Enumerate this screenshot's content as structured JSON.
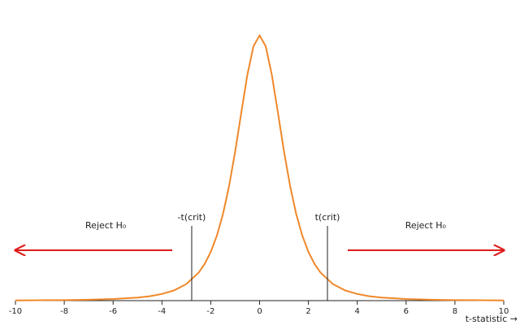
{
  "chart_data": {
    "type": "line",
    "x": [
      -10,
      -9,
      -8,
      -7,
      -6,
      -5,
      -4.5,
      -4,
      -3.5,
      -3,
      -2.5,
      -2.25,
      -2,
      -1.75,
      -1.5,
      -1.25,
      -1,
      -0.75,
      -0.5,
      -0.25,
      0,
      0.25,
      0.5,
      0.75,
      1,
      1.25,
      1.5,
      1.75,
      2,
      2.25,
      2.5,
      3,
      3.5,
      4,
      4.5,
      5,
      6,
      7,
      8,
      9,
      10
    ],
    "values": [
      0.0003,
      0.0005,
      0.0007,
      0.0012,
      0.0022,
      0.0042,
      0.0061,
      0.0092,
      0.0142,
      0.023,
      0.0387,
      0.0509,
      0.0675,
      0.09,
      0.12,
      0.1589,
      0.2068,
      0.2607,
      0.3132,
      0.3527,
      0.3676,
      0.3527,
      0.3132,
      0.2607,
      0.2068,
      0.1589,
      0.12,
      0.09,
      0.0675,
      0.0509,
      0.0387,
      0.023,
      0.0142,
      0.0092,
      0.0061,
      0.0042,
      0.0022,
      0.0012,
      0.0007,
      0.0005,
      0.0003
    ],
    "color": "#f0882a",
    "xlim": [
      -10,
      10
    ],
    "xticks": [
      -10,
      -8,
      -6,
      -4,
      -2,
      0,
      2,
      4,
      6,
      8,
      10
    ],
    "ylim": [
      0,
      0.3875
    ],
    "x_label": "t-statistic →",
    "critical_lines": [
      {
        "x": -2.78,
        "label": "-t(crit)"
      },
      {
        "x": 2.78,
        "label": "t(crit)"
      }
    ],
    "annotations": [
      {
        "text": "Reject H₀",
        "x": -6.3,
        "direction": "left"
      },
      {
        "text": "Reject H₀",
        "x": 6.8,
        "direction": "right"
      }
    ],
    "arrow_color": "#dd1c1c"
  }
}
